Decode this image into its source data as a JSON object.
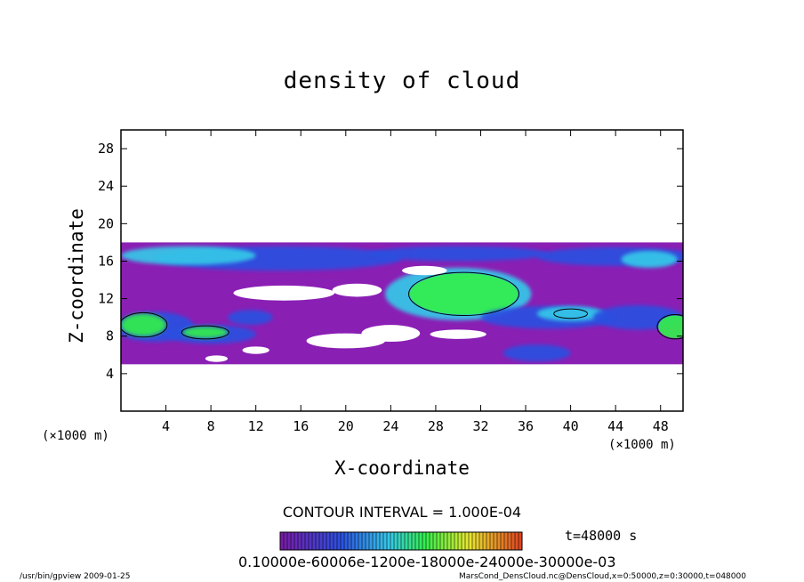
{
  "chart_data": {
    "type": "heatmap",
    "title": "density of cloud",
    "xlabel": "X-coordinate",
    "ylabel": "Z-coordinate",
    "x_unit": "(×1000 m)",
    "z_unit": "(×1000 m)",
    "xlim": [
      0,
      50
    ],
    "ylim": [
      0,
      30
    ],
    "x_ticks": [
      "4",
      "8",
      "12",
      "16",
      "20",
      "24",
      "28",
      "32",
      "36",
      "40",
      "44",
      "48"
    ],
    "y_ticks": [
      "4",
      "8",
      "12",
      "16",
      "20",
      "24",
      "28"
    ],
    "contour_interval": "CONTOUR INTERVAL = 1.000E-04",
    "time_label": "t=48000 s",
    "colorbar_labels": "0.10000e-60006e-1200e-18000e-24000e-30000e-03",
    "colorbar_range": [
      0.0001,
      0.0007
    ],
    "cloud_layer_z_range": [
      5,
      18
    ],
    "colors": {
      "low": "#8a1fb4",
      "mid_low": "#2c50e0",
      "mid": "#36c8e8",
      "high": "#33ee4c",
      "gap": "#ffffff"
    }
  },
  "footer": {
    "left": "/usr/bin/gpview   2009-01-25",
    "right": "MarsCond_DensCloud.nc@DensCloud,x=0:50000,z=0:30000,t=048000"
  }
}
